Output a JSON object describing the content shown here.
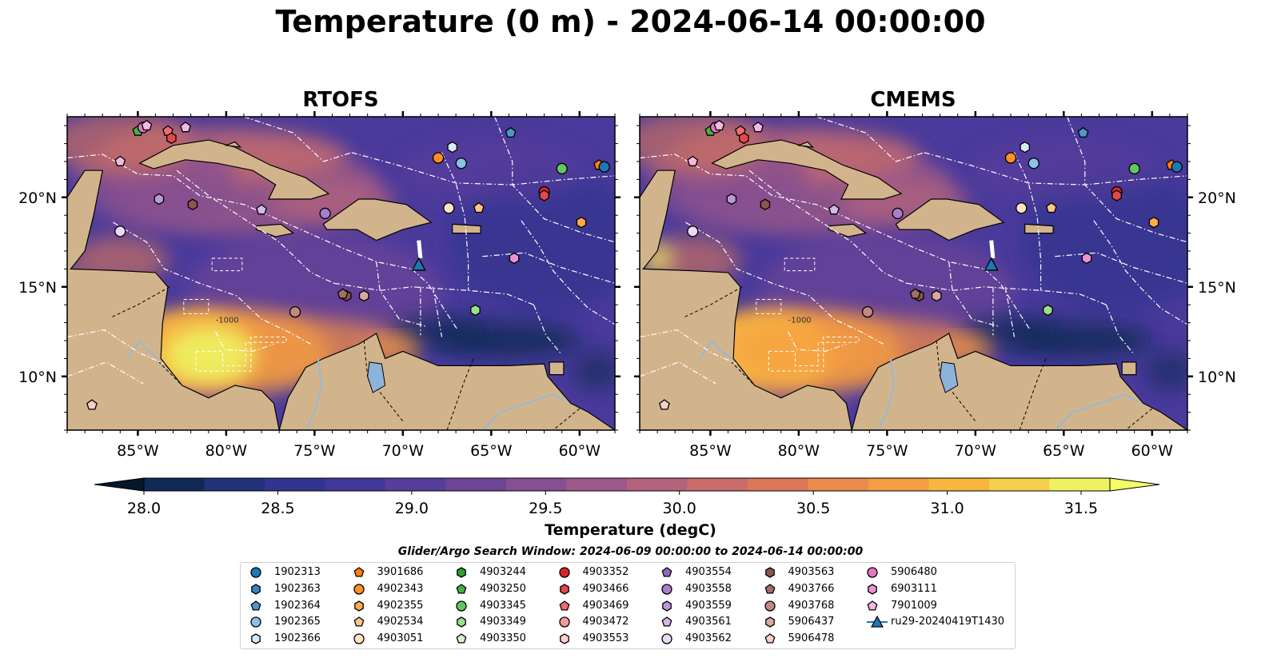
{
  "title": "Temperature (0 m) - 2024-06-14 00:00:00",
  "panels": [
    {
      "name": "rtofs",
      "title": "RTOFS"
    },
    {
      "name": "cmems",
      "title": "CMEMS"
    }
  ],
  "map": {
    "lon_range": [
      -89,
      -58
    ],
    "lat_range": [
      7,
      24.5
    ],
    "lon_ticks": [
      "85°W",
      "80°W",
      "75°W",
      "70°W",
      "65°W",
      "60°W"
    ],
    "lat_ticks": [
      "20°N",
      "15°N",
      "10°N"
    ],
    "bathy_label": "-1000",
    "colors": {
      "land": "#d2b48c",
      "boundary": "#ffffff",
      "coast": "#000000",
      "river": "#9ab7d4",
      "lake": "#8db2dc",
      "glider": "#1f77b4"
    }
  },
  "colorbar": {
    "title": "Temperature (degC)",
    "min": 28.0,
    "max": 31.5,
    "ticks": [
      "28.0",
      "28.5",
      "29.0",
      "29.5",
      "30.0",
      "30.5",
      "31.0",
      "31.5"
    ],
    "colors": [
      "#0f2a55",
      "#233278",
      "#32358f",
      "#42389a",
      "#583e9b",
      "#6d4597",
      "#864f91",
      "#9d5a88",
      "#b4637c",
      "#ca6d6a",
      "#dc7859",
      "#ec8a4a",
      "#f59d43",
      "#f9b63f",
      "#f6d04a",
      "#eef262"
    ],
    "extend_low": "#04172b",
    "extend_high": "#f2ff67"
  },
  "search_window": "Glider/Argo Search Window: 2024-06-09 00:00:00 to 2024-06-14 00:00:00",
  "legend": [
    {
      "label": "1902313",
      "marker": "circle",
      "color": "#1f77b4"
    },
    {
      "label": "1902363",
      "marker": "hexagon",
      "color": "#3a85c0"
    },
    {
      "label": "1902364",
      "marker": "pentagon",
      "color": "#5095cc"
    },
    {
      "label": "1902365",
      "marker": "circle",
      "color": "#8ec1e6"
    },
    {
      "label": "1902366",
      "marker": "hexagon",
      "color": "#d6eaf8"
    },
    {
      "label": "3901686",
      "marker": "pentagon",
      "color": "#ff7f0e"
    },
    {
      "label": "4902343",
      "marker": "circle",
      "color": "#ff8f26"
    },
    {
      "label": "4902355",
      "marker": "hexagon",
      "color": "#ffa94d"
    },
    {
      "label": "4902534",
      "marker": "pentagon",
      "color": "#ffc48a"
    },
    {
      "label": "4903051",
      "marker": "circle",
      "color": "#ffe2c2"
    },
    {
      "label": "4903244",
      "marker": "hexagon",
      "color": "#2ca02c"
    },
    {
      "label": "4903250",
      "marker": "pentagon",
      "color": "#45b045"
    },
    {
      "label": "4903345",
      "marker": "circle",
      "color": "#63c663"
    },
    {
      "label": "4903349",
      "marker": "hexagon",
      "color": "#98df8a"
    },
    {
      "label": "4903350",
      "marker": "pentagon",
      "color": "#d4f5c9"
    },
    {
      "label": "4903352",
      "marker": "circle",
      "color": "#d62728"
    },
    {
      "label": "4903466",
      "marker": "hexagon",
      "color": "#e04a4a"
    },
    {
      "label": "4903469",
      "marker": "pentagon",
      "color": "#ec6e6e"
    },
    {
      "label": "4903472",
      "marker": "circle",
      "color": "#f59a9a"
    },
    {
      "label": "4903553",
      "marker": "hexagon",
      "color": "#ffd0d0"
    },
    {
      "label": "4903554",
      "marker": "pentagon",
      "color": "#9467bd"
    },
    {
      "label": "4903558",
      "marker": "circle",
      "color": "#a77fcb"
    },
    {
      "label": "4903559",
      "marker": "hexagon",
      "color": "#bb99d9"
    },
    {
      "label": "4903561",
      "marker": "pentagon",
      "color": "#d3b8e8"
    },
    {
      "label": "4903562",
      "marker": "circle",
      "color": "#ead9f7"
    },
    {
      "label": "4903563",
      "marker": "hexagon",
      "color": "#8c564b"
    },
    {
      "label": "4903766",
      "marker": "pentagon",
      "color": "#a46e63"
    },
    {
      "label": "4903768",
      "marker": "circle",
      "color": "#c08a80"
    },
    {
      "label": "5906437",
      "marker": "hexagon",
      "color": "#dba89f"
    },
    {
      "label": "5906478",
      "marker": "pentagon",
      "color": "#f6cfc6"
    },
    {
      "label": "5906480",
      "marker": "circle",
      "color": "#e377c2"
    },
    {
      "label": "6903111",
      "marker": "hexagon",
      "color": "#ea93d0"
    },
    {
      "label": "7901009",
      "marker": "pentagon",
      "color": "#f5b8e2"
    },
    {
      "label": "ru29-20240419T1430",
      "marker": "triangle-line",
      "color": "#1f77b4"
    }
  ],
  "floats": [
    {
      "id": "4903250",
      "lon": -85.0,
      "lat": 23.7
    },
    {
      "id": "5906480",
      "lon": -84.7,
      "lat": 23.9
    },
    {
      "id": "7901009",
      "lon": -84.5,
      "lat": 24.0
    },
    {
      "id": "4903469",
      "lon": -83.3,
      "lat": 23.7
    },
    {
      "id": "4903466",
      "lon": -83.1,
      "lat": 23.3
    },
    {
      "id": "7901009",
      "lon": -82.3,
      "lat": 23.9
    },
    {
      "id": "7901009",
      "lon": -86.0,
      "lat": 22.0
    },
    {
      "id": "1902364",
      "lon": -63.9,
      "lat": 23.6
    },
    {
      "id": "1902366",
      "lon": -67.2,
      "lat": 22.8
    },
    {
      "id": "4902343",
      "lon": -68.0,
      "lat": 22.2
    },
    {
      "id": "1902365",
      "lon": -66.7,
      "lat": 21.9
    },
    {
      "id": "4903345",
      "lon": -61.0,
      "lat": 21.6
    },
    {
      "id": "3901686",
      "lon": -58.9,
      "lat": 21.8
    },
    {
      "id": "1902313",
      "lon": -58.6,
      "lat": 21.7
    },
    {
      "id": "4903352",
      "lon": -62.0,
      "lat": 20.3
    },
    {
      "id": "4903466",
      "lon": -62.0,
      "lat": 20.1
    },
    {
      "id": "4903559",
      "lon": -83.8,
      "lat": 19.9
    },
    {
      "id": "4903563",
      "lon": -81.9,
      "lat": 19.6
    },
    {
      "id": "4903561",
      "lon": -78.0,
      "lat": 19.3
    },
    {
      "id": "4903558",
      "lon": -74.4,
      "lat": 19.1
    },
    {
      "id": "4903051",
      "lon": -67.4,
      "lat": 19.4
    },
    {
      "id": "4902534",
      "lon": -65.7,
      "lat": 19.4
    },
    {
      "id": "4902355",
      "lon": -59.9,
      "lat": 18.6
    },
    {
      "id": "4903562",
      "lon": -86.0,
      "lat": 18.1
    },
    {
      "id": "6903111",
      "lon": -63.7,
      "lat": 16.6
    },
    {
      "id": "4903563",
      "lon": -73.2,
      "lat": 14.5
    },
    {
      "id": "4903766",
      "lon": -73.4,
      "lat": 14.6
    },
    {
      "id": "5906437",
      "lon": -72.2,
      "lat": 14.5
    },
    {
      "id": "4903768",
      "lon": -76.1,
      "lat": 13.6
    },
    {
      "id": "4903349",
      "lon": -65.9,
      "lat": 13.7
    },
    {
      "id": "5906478",
      "lon": -87.6,
      "lat": 8.4
    }
  ],
  "glider": {
    "id": "ru29-20240419T1430",
    "lon": -69.1,
    "lat": 16.2,
    "track": [
      [
        -69.1,
        17.6
      ],
      [
        -69.0,
        16.6
      ]
    ]
  }
}
